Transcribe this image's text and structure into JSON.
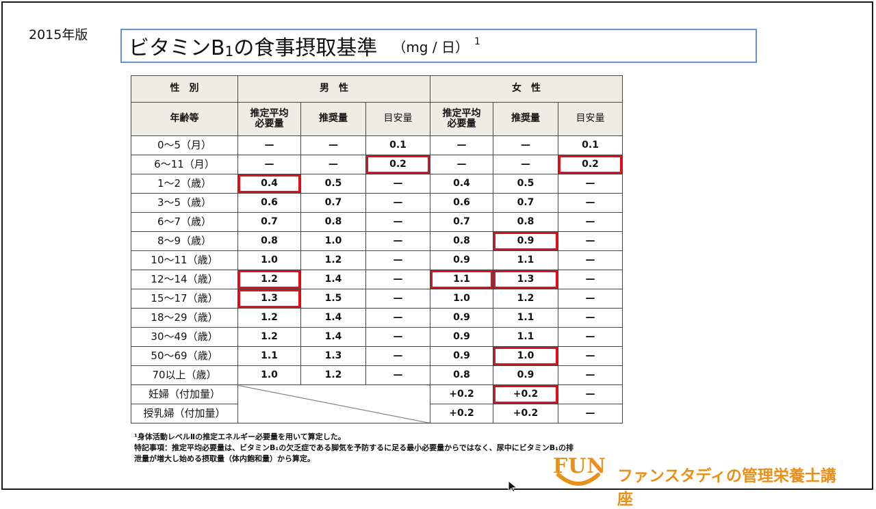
{
  "edition": "2015年版",
  "title": {
    "main_pre": "ビタミンB",
    "main_sub": "1",
    "main_post": "の食事摂取基準",
    "unit": "（mg / 日）",
    "sup": "1"
  },
  "table": {
    "header": {
      "sex": "性　別",
      "male": "男　性",
      "female": "女　性",
      "age": "年齢等",
      "ear": "推定平均必要量",
      "rda": "推奨量",
      "ai": "目安量"
    },
    "rows": [
      {
        "age": "0〜5（月）",
        "m": [
          "—",
          "—",
          "0.1"
        ],
        "f": [
          "—",
          "—",
          "0.1"
        ]
      },
      {
        "age": "6〜11（月）",
        "m": [
          "—",
          "—",
          "0.2"
        ],
        "f": [
          "—",
          "—",
          "0.2"
        ]
      },
      {
        "age": "1〜2（歳）",
        "m": [
          "0.4",
          "0.5",
          "—"
        ],
        "f": [
          "0.4",
          "0.5",
          "—"
        ]
      },
      {
        "age": "3〜5（歳）",
        "m": [
          "0.6",
          "0.7",
          "—"
        ],
        "f": [
          "0.6",
          "0.7",
          "—"
        ]
      },
      {
        "age": "6〜7（歳）",
        "m": [
          "0.7",
          "0.8",
          "—"
        ],
        "f": [
          "0.7",
          "0.8",
          "—"
        ]
      },
      {
        "age": "8〜9（歳）",
        "m": [
          "0.8",
          "1.0",
          "—"
        ],
        "f": [
          "0.8",
          "0.9",
          "—"
        ]
      },
      {
        "age": "10〜11（歳）",
        "m": [
          "1.0",
          "1.2",
          "—"
        ],
        "f": [
          "0.9",
          "1.1",
          "—"
        ]
      },
      {
        "age": "12〜14（歳）",
        "m": [
          "1.2",
          "1.4",
          "—"
        ],
        "f": [
          "1.1",
          "1.3",
          "—"
        ]
      },
      {
        "age": "15〜17（歳）",
        "m": [
          "1.3",
          "1.5",
          "—"
        ],
        "f": [
          "1.0",
          "1.2",
          "—"
        ]
      },
      {
        "age": "18〜29（歳）",
        "m": [
          "1.2",
          "1.4",
          "—"
        ],
        "f": [
          "0.9",
          "1.1",
          "—"
        ]
      },
      {
        "age": "30〜49（歳）",
        "m": [
          "1.2",
          "1.4",
          "—"
        ],
        "f": [
          "0.9",
          "1.1",
          "—"
        ]
      },
      {
        "age": "50〜69（歳）",
        "m": [
          "1.1",
          "1.3",
          "—"
        ],
        "f": [
          "0.9",
          "1.0",
          "—"
        ]
      },
      {
        "age": "70以上（歳）",
        "m": [
          "1.0",
          "1.2",
          "—"
        ],
        "f": [
          "0.8",
          "0.9",
          "—"
        ]
      }
    ],
    "pregnant": {
      "label": "妊婦（付加量）",
      "f": [
        "+0.2",
        "+0.2",
        "—"
      ]
    },
    "lactating": {
      "label": "授乳婦（付加量）",
      "f": [
        "+0.2",
        "+0.2",
        "—"
      ]
    },
    "highlight_color": "#e0101a"
  },
  "notes": {
    "line1": "¹身体活動レベルⅡの推定エネルギー必要量を用いて算定した。",
    "line2": "特記事項：推定平均必要量は、ビタミンB₁の欠乏症である脚気を予防するに足る最小必要量からではなく、尿中にビタミンB₁の排",
    "line3": "泄量が増大し始める摂取量（体内飽和量）から算定。"
  },
  "logo": {
    "fun": "FUN",
    "text": "ファンスタディの管理栄養士講座",
    "color": "#e8901a"
  }
}
